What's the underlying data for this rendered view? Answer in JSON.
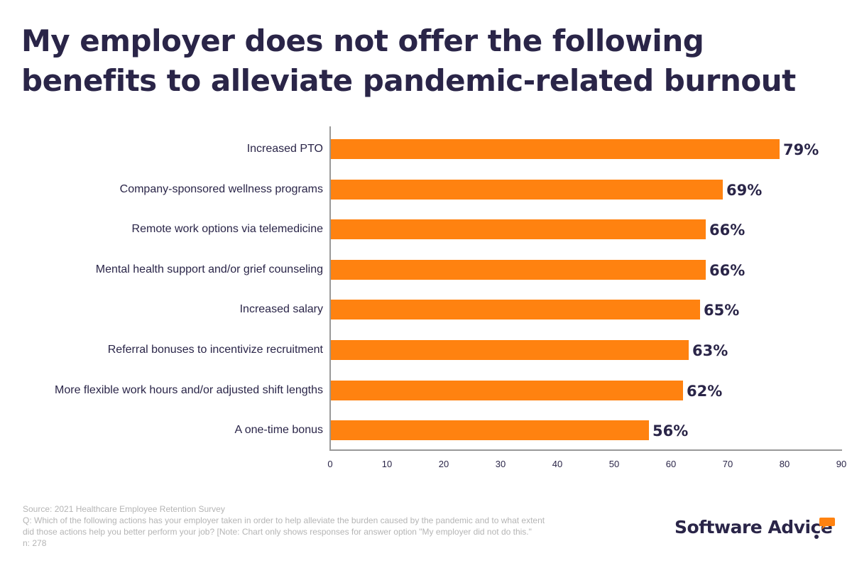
{
  "title_line1": "My employer does not offer the following",
  "title_line2": "benefits to alleviate pandemic-related burnout",
  "colors": {
    "bar": "#ff8210",
    "text": "#2a2548",
    "footer": "#b5b5b5"
  },
  "chart_data": {
    "type": "bar",
    "orientation": "horizontal",
    "title": "My employer does not offer the following benefits to alleviate pandemic-related burnout",
    "categories": [
      "Increased PTO",
      "Company-sponsored wellness programs",
      "Remote work options via telemedicine",
      "Mental health support and/or grief counseling",
      "Increased salary",
      "Referral bonuses to incentivize recruitment",
      "More flexible work hours and/or adjusted shift lengths",
      "A one-time bonus"
    ],
    "values": [
      79,
      69,
      66,
      66,
      65,
      63,
      62,
      56
    ],
    "value_labels": [
      "79%",
      "69%",
      "66%",
      "66%",
      "65%",
      "63%",
      "62%",
      "56%"
    ],
    "xlabel": "",
    "ylabel": "",
    "xlim": [
      0,
      90
    ],
    "xticks": [
      "0",
      "10",
      "20",
      "30",
      "40",
      "50",
      "60",
      "70",
      "80",
      "90"
    ],
    "grid": false,
    "legend": null
  },
  "footer": {
    "source": "Source: 2021 Healthcare Employee Retention Survey",
    "question_line1": "Q: Which of the following actions has your employer taken in order to help alleviate the burden caused by the pandemic and to what extent",
    "question_line2": "did those actions help you better perform your job? [Note: Chart only shows responses for answer option \"My employer did not do this.\"",
    "n": "n: 278"
  },
  "logo": {
    "text": "Software Advice",
    "icon": "speech-bubble-icon"
  }
}
